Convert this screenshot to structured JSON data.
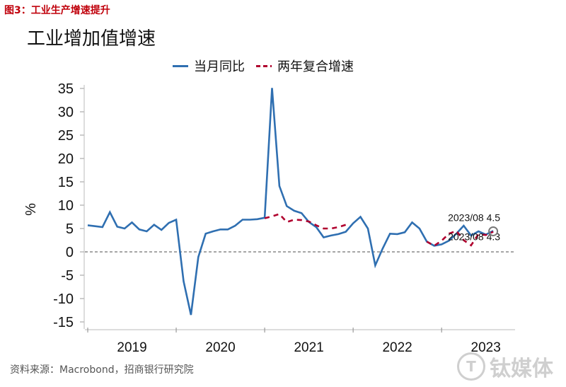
{
  "figure_label": "图3：工业生产增速提升",
  "source": "资料来源：Macrobond，招商银行研究院",
  "watermark": "钛媒体",
  "watermark_logo": "T",
  "colors": {
    "series1": "#2f6fb1",
    "series2": "#b0002e",
    "zero_line": "#888888"
  },
  "chart_data": {
    "type": "line",
    "title": "工业增加值增速",
    "ylabel": "%",
    "xlabel": "",
    "ylim": [
      -15,
      35
    ],
    "yticks": [
      35,
      30,
      25,
      20,
      15,
      10,
      5,
      0,
      -5,
      -10,
      -15
    ],
    "xticks": [
      "2019",
      "2020",
      "2021",
      "2022",
      "2023"
    ],
    "legend": [
      "当月同比",
      "两年复合增速"
    ],
    "legend_position": "top",
    "zero_line": "dashed",
    "series": [
      {
        "name": "当月同比",
        "style": "solid",
        "x": [
          "2019-01",
          "2019-02",
          "2019-03",
          "2019-04",
          "2019-05",
          "2019-06",
          "2019-07",
          "2019-08",
          "2019-09",
          "2019-10",
          "2019-11",
          "2019-12",
          "2020-01",
          "2020-02",
          "2020-03",
          "2020-04",
          "2020-05",
          "2020-06",
          "2020-07",
          "2020-08",
          "2020-09",
          "2020-10",
          "2020-11",
          "2020-12",
          "2021-01",
          "2021-02",
          "2021-03",
          "2021-04",
          "2021-05",
          "2021-06",
          "2021-07",
          "2021-08",
          "2021-09",
          "2021-10",
          "2021-11",
          "2021-12",
          "2022-01",
          "2022-02",
          "2022-03",
          "2022-04",
          "2022-05",
          "2022-06",
          "2022-07",
          "2022-08",
          "2022-09",
          "2022-10",
          "2022-11",
          "2022-12",
          "2023-01",
          "2023-02",
          "2023-03",
          "2023-04",
          "2023-05",
          "2023-06",
          "2023-07",
          "2023-08"
        ],
        "values": [
          5.7,
          5.5,
          5.3,
          8.5,
          5.4,
          5.0,
          6.3,
          4.8,
          4.4,
          5.8,
          4.7,
          6.2,
          6.9,
          -6.3,
          -13.5,
          -1.1,
          3.9,
          4.4,
          4.8,
          4.8,
          5.6,
          6.9,
          6.9,
          7.0,
          7.3,
          35.1,
          14.1,
          9.8,
          8.8,
          8.3,
          6.4,
          5.3,
          3.1,
          3.5,
          3.8,
          4.3,
          6.1,
          7.5,
          5.0,
          -2.9,
          0.7,
          3.9,
          3.8,
          4.2,
          6.3,
          5.0,
          2.2,
          1.3,
          1.6,
          2.4,
          3.9,
          5.6,
          3.5,
          4.4,
          3.7,
          4.5
        ]
      },
      {
        "name": "两年复合增速",
        "style": "dashed",
        "x": [
          "2021-01",
          "2021-02",
          "2021-03",
          "2021-04",
          "2021-05",
          "2021-06",
          "2021-07",
          "2021-08",
          "2021-09",
          "2021-10",
          "2021-11",
          "2021-12",
          "2022-11",
          "2022-12",
          "2023-01",
          "2023-02",
          "2023-03",
          "2023-04",
          "2023-05",
          "2023-06",
          "2023-07",
          "2023-08"
        ],
        "values": [
          7.2,
          7.6,
          8.1,
          6.4,
          6.9,
          6.8,
          6.5,
          5.7,
          5.0,
          5.0,
          5.3,
          5.8,
          2.2,
          1.3,
          2.4,
          3.9,
          4.5,
          2.5,
          1.4,
          3.8,
          3.6,
          4.3
        ]
      }
    ],
    "annotations": [
      {
        "text": "2023/08 4.5",
        "series": "当月同比",
        "x": "2023-08",
        "y": 4.5
      },
      {
        "text": "2023/08 4.3",
        "series": "两年复合增速",
        "x": "2023-08",
        "y": 4.3
      }
    ]
  }
}
